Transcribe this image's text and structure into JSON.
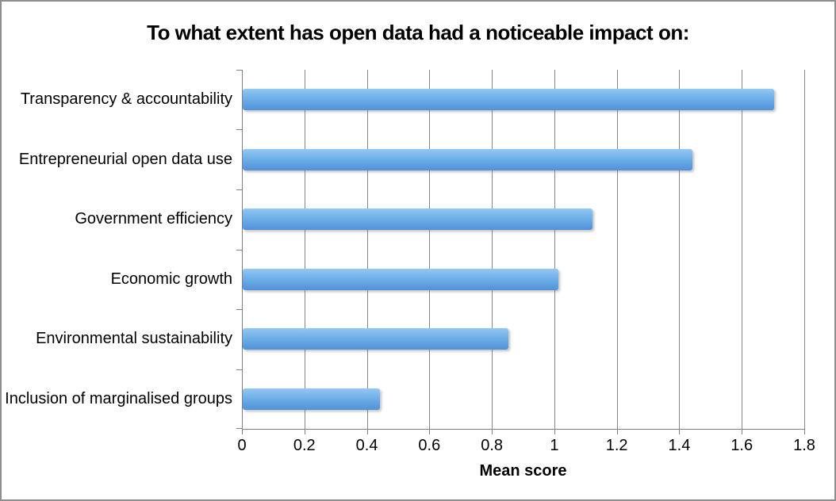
{
  "chart_data": {
    "type": "bar",
    "orientation": "horizontal",
    "title": "To what extent has open data had a noticeable impact on:",
    "categories": [
      "Transparency & accountability",
      "Entrepreneurial open data use",
      "Government efficiency",
      "Economic growth",
      "Environmental sustainability",
      "Inclusion of marginalised groups"
    ],
    "values": [
      1.7,
      1.44,
      1.12,
      1.01,
      0.85,
      0.44
    ],
    "xlabel": "Mean score",
    "ylabel": "",
    "xlim": [
      0,
      1.8
    ],
    "x_ticks": [
      0,
      0.2,
      0.4,
      0.6,
      0.8,
      1,
      1.2,
      1.4,
      1.6,
      1.8
    ],
    "x_tick_labels": [
      "0",
      "0.2",
      "0.4",
      "0.6",
      "0.8",
      "1",
      "1.2",
      "1.4",
      "1.6",
      "1.8"
    ],
    "grid": true,
    "legend": false,
    "colors": {
      "bar_top": "#94c7f2",
      "bar_mid": "#6caee7",
      "bar_bottom": "#5191d8",
      "gridline": "#868686",
      "axis": "#808080",
      "text": "#000000",
      "background": "#ffffff",
      "frame_border": "#8e8e8e"
    }
  }
}
